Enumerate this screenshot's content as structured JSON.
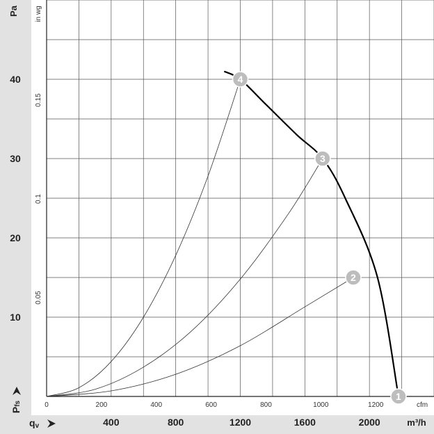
{
  "chart_data": {
    "type": "line",
    "units": {
      "pressure_left": "Pa",
      "pressure_inner": "in wg",
      "pressure_symbol": "P",
      "pressure_subscript": "fs",
      "flow_bottom": "m³/h",
      "flow_inner": "cfm",
      "flow_symbol": "q",
      "flow_subscript": "v"
    },
    "axes": {
      "pa_ticks": [
        "10",
        "20",
        "30",
        "40"
      ],
      "inwg_ticks": [
        "0.05",
        "0.1",
        "0.15"
      ],
      "cfm_ticks": [
        "0",
        "200",
        "400",
        "600",
        "800",
        "1000",
        "1200"
      ],
      "m3h_ticks": [
        "400",
        "800",
        "1200",
        "1600",
        "2000"
      ],
      "xlim_m3h": [
        0,
        2400
      ],
      "ylim_pa": [
        0,
        50
      ],
      "grid": true
    },
    "fan_curve": {
      "x": [
        1100,
        1200,
        1350,
        1550,
        1710,
        1850,
        2050,
        2180
      ],
      "y": [
        41,
        40,
        37,
        33,
        30,
        25,
        15,
        0
      ]
    },
    "system_curves": [
      {
        "x": [
          0,
          200,
          400,
          600,
          800,
          1000,
          1200
        ],
        "y": [
          0,
          1.1,
          4.4,
          10,
          17.8,
          27.8,
          40
        ]
      },
      {
        "x": [
          0,
          300,
          600,
          900,
          1200,
          1500,
          1710
        ],
        "y": [
          0,
          0.9,
          3.7,
          8.3,
          14.8,
          23.1,
          30
        ]
      },
      {
        "x": [
          0,
          400,
          800,
          1200,
          1600,
          1900
        ],
        "y": [
          0,
          0.7,
          2.8,
          6.4,
          11.3,
          15
        ]
      }
    ],
    "operating_points": [
      {
        "label": "1",
        "x": 2180,
        "y": 0
      },
      {
        "label": "2",
        "x": 1900,
        "y": 15
      },
      {
        "label": "3",
        "x": 1710,
        "y": 30
      },
      {
        "label": "4",
        "x": 1200,
        "y": 40
      }
    ]
  }
}
